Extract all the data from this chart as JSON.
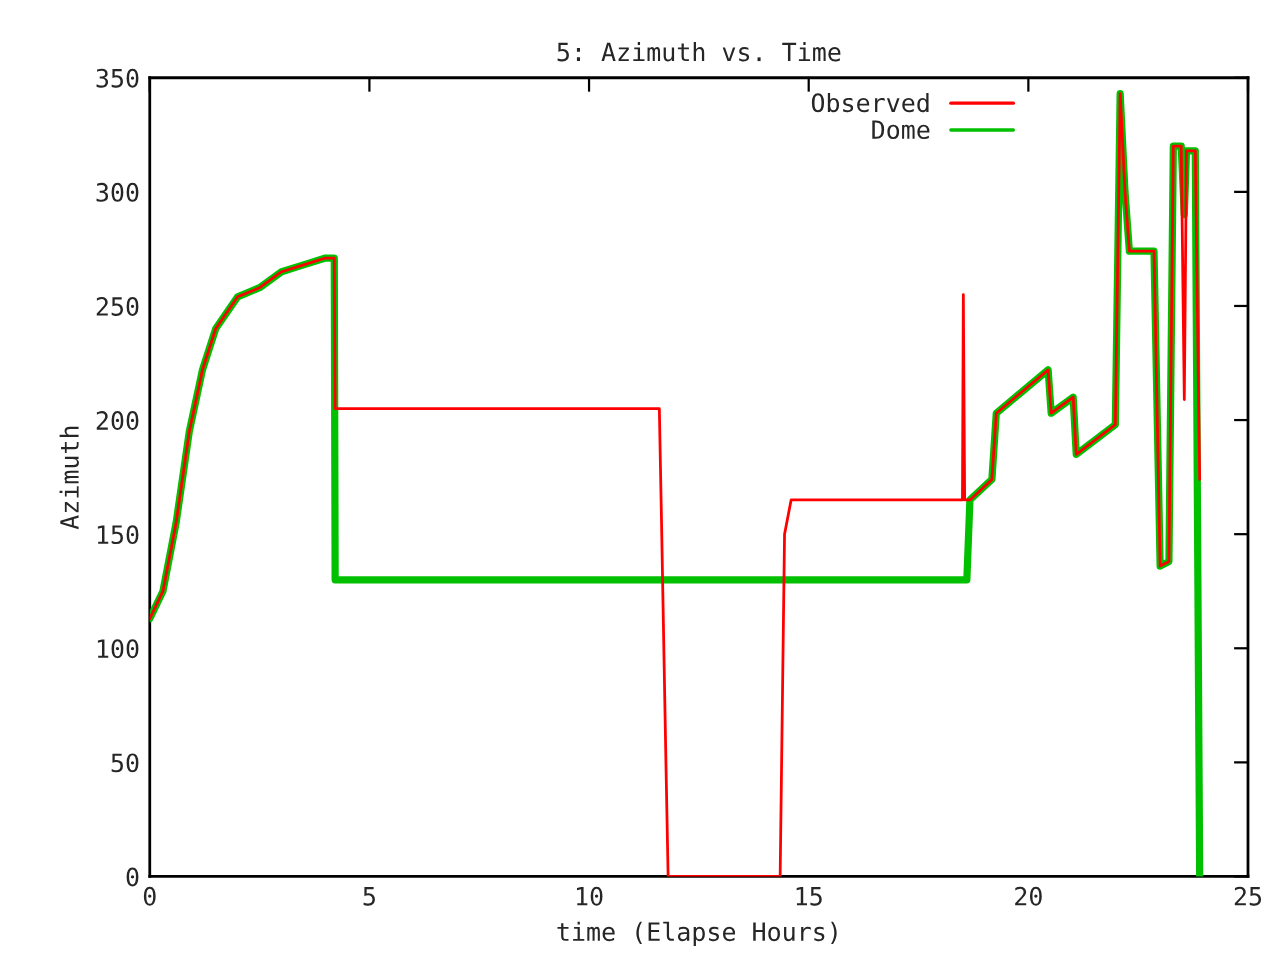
{
  "chart_data": {
    "type": "line",
    "title": "5: Azimuth vs. Time",
    "xlabel": "time (Elapse Hours)",
    "ylabel": "Azimuth",
    "xlim": [
      0,
      25
    ],
    "xticks": [
      0,
      5,
      10,
      15,
      20,
      25
    ],
    "ylim": [
      0,
      350
    ],
    "yticks": [
      0,
      50,
      100,
      150,
      200,
      250,
      300,
      350
    ],
    "grid": false,
    "legend": "top right",
    "marker": "none",
    "line_style": "solid",
    "series": [
      {
        "name": "Observed",
        "color": "#ff0000",
        "x": [
          0,
          0.3,
          0.6,
          0.9,
          1.2,
          1.5,
          2,
          2.5,
          3,
          3.5,
          4,
          4.2,
          4.22,
          11.6,
          11.65,
          11.75,
          11.8,
          14.35,
          14.45,
          14.6,
          18.5,
          18.52,
          18.55,
          18.6,
          18.67,
          19.17,
          19.27,
          20.45,
          20.52,
          21.02,
          21.09,
          21.98,
          22.09,
          22.2,
          22.3,
          22.86,
          23.0,
          23.2,
          23.3,
          23.48,
          23.55,
          23.6,
          23.8,
          23.9
        ],
        "values": [
          113,
          125,
          155,
          195,
          222,
          240,
          254,
          258,
          265,
          268,
          271,
          271,
          205,
          205,
          155,
          50,
          0,
          0,
          150,
          165,
          165,
          255,
          165,
          165,
          165,
          174,
          203,
          222,
          203,
          210,
          185,
          198,
          343,
          300,
          274,
          274,
          136,
          138,
          320,
          320,
          209,
          318,
          318,
          174
        ]
      },
      {
        "name": "Dome",
        "color": "#00c000",
        "x": [
          0,
          0.3,
          0.6,
          0.9,
          1.2,
          1.5,
          2,
          2.5,
          3,
          3.5,
          4,
          4.2,
          4.22,
          18.6,
          18.67,
          19.17,
          19.27,
          20.45,
          20.52,
          21.02,
          21.09,
          21.98,
          22.09,
          22.2,
          22.3,
          22.86,
          23.0,
          23.2,
          23.3,
          23.48,
          23.55,
          23.6,
          23.8,
          23.9
        ],
        "values": [
          113,
          125,
          155,
          195,
          222,
          240,
          254,
          258,
          265,
          268,
          271,
          271,
          130,
          130,
          165,
          174,
          203,
          222,
          203,
          210,
          185,
          198,
          343,
          300,
          274,
          274,
          136,
          138,
          320,
          320,
          290,
          318,
          318,
          0
        ]
      }
    ]
  }
}
